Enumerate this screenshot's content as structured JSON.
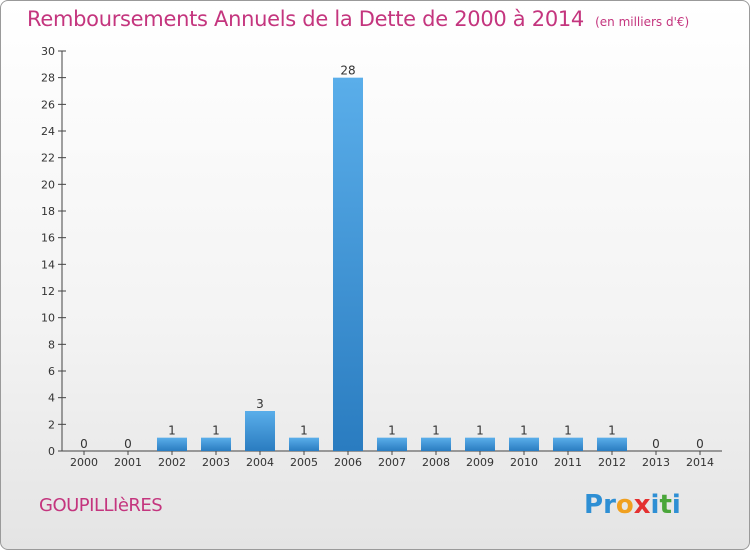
{
  "title": "Remboursements Annuels de la Dette de 2000 à 2014",
  "unit": "(en milliers d'€)",
  "commune": "GOUPILLIèRES",
  "brand": {
    "letters": [
      "P",
      "r",
      "o",
      "x",
      "i",
      "t",
      "i"
    ],
    "colors": [
      "#2e8fd4",
      "#2e8fd4",
      "#f0a020",
      "#e43030",
      "#2e8fd4",
      "#4aa63a",
      "#2e8fd4"
    ]
  },
  "chart_data": {
    "type": "bar",
    "categories": [
      "2000",
      "2001",
      "2002",
      "2003",
      "2004",
      "2005",
      "2006",
      "2007",
      "2008",
      "2009",
      "2010",
      "2011",
      "2012",
      "2013",
      "2014"
    ],
    "values": [
      0,
      0,
      1,
      1,
      3,
      1,
      28,
      1,
      1,
      1,
      1,
      1,
      1,
      0,
      0
    ],
    "data_labels": [
      "0",
      "0",
      "1",
      "1",
      "3",
      "1",
      "28",
      "1",
      "1",
      "1",
      "1",
      "1",
      "1",
      "0",
      "0"
    ],
    "ylim": [
      0,
      30
    ],
    "yticks": [
      "0",
      "2",
      "4",
      "6",
      "8",
      "10",
      "12",
      "14",
      "16",
      "18",
      "20",
      "22",
      "24",
      "26",
      "28",
      "30"
    ],
    "grid": false,
    "bar_color": "#3d93d8"
  }
}
